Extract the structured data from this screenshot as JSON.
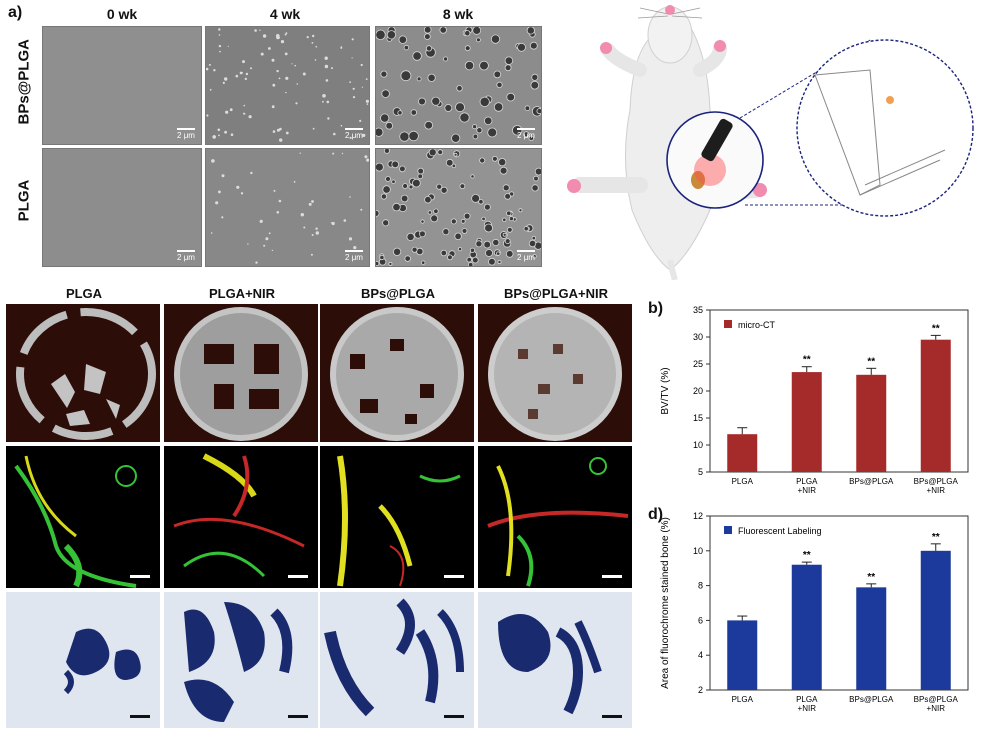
{
  "panel_a": {
    "label": "a)",
    "columns": [
      "0 wk",
      "4 wk",
      "8 wk"
    ],
    "rows": [
      "BPs@PLGA",
      "PLGA"
    ],
    "scale_label": "2 μm"
  },
  "panel_c": {
    "titles": [
      "PLGA",
      "PLGA+NIR",
      "BPs@PLGA",
      "BPs@PLGA+NIR"
    ]
  },
  "chart_data": [
    {
      "type": "bar",
      "panel_label": "b)",
      "legend": "micro-CT",
      "ylabel": "BV/TV (%)",
      "categories": [
        "PLGA",
        "PLGA\n+NIR",
        "BPs@PLGA",
        "BPs@PLGA\n+NIR"
      ],
      "values": [
        12.0,
        23.5,
        23.0,
        29.5
      ],
      "errors": [
        1.2,
        1.0,
        1.2,
        0.8
      ],
      "significance": [
        "",
        "**",
        "**",
        "**"
      ],
      "ylim": [
        5,
        35
      ],
      "yticks": [
        5,
        10,
        15,
        20,
        25,
        30,
        35
      ],
      "color": "#a52a2a"
    },
    {
      "type": "bar",
      "panel_label": "d)",
      "legend": "Fluorescent Labeling",
      "ylabel": "Area of fluorochrome stained bone (%)",
      "categories": [
        "PLGA",
        "PLGA\n+NIR",
        "BPs@PLGA",
        "BPs@PLGA\n+NIR"
      ],
      "values": [
        6.0,
        9.2,
        7.9,
        10.0
      ],
      "errors": [
        0.25,
        0.15,
        0.2,
        0.4
      ],
      "significance": [
        "",
        "**",
        "**",
        "**"
      ],
      "ylim": [
        2,
        12
      ],
      "yticks": [
        2,
        4,
        6,
        8,
        10,
        12
      ],
      "color": "#1c3a9c"
    }
  ]
}
